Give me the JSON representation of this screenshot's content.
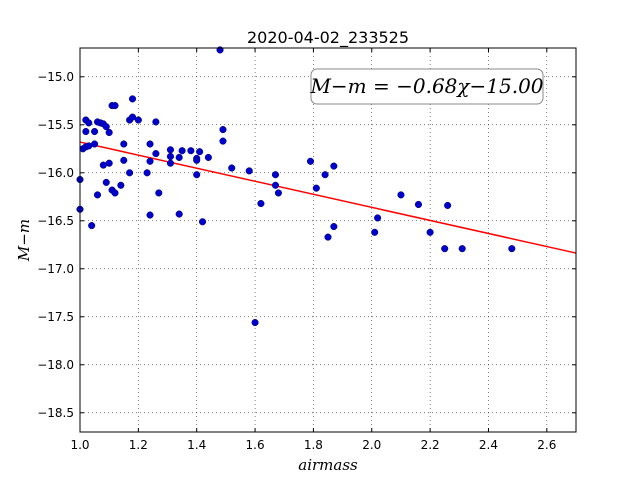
{
  "chart_data": {
    "type": "scatter",
    "title": "2020-04-02_233525",
    "xlabel": "airmass",
    "ylabel": "M−m",
    "xlim": [
      1.0,
      2.7
    ],
    "ylim": [
      -18.7,
      -14.7
    ],
    "xticks": [
      1.0,
      1.2,
      1.4,
      1.6,
      1.8,
      2.0,
      2.2,
      2.4,
      2.6
    ],
    "xtick_labels": [
      "1.0",
      "1.2",
      "1.4",
      "1.6",
      "1.8",
      "2.0",
      "2.2",
      "2.4",
      "2.6"
    ],
    "yticks": [
      -15.0,
      -15.5,
      -16.0,
      -16.5,
      -17.0,
      -17.5,
      -18.0,
      -18.5
    ],
    "ytick_labels": [
      "−15.0",
      "−15.5",
      "−16.0",
      "−16.5",
      "−17.0",
      "−17.5",
      "−18.0",
      "−18.5"
    ],
    "grid": true,
    "annotation": "M−m = −0.68χ−15.00",
    "fit": {
      "slope": -0.68,
      "intercept": -15.0,
      "color": "#ff0000"
    },
    "marker_color": "#0000cc",
    "points": [
      [
        1.0,
        -16.07
      ],
      [
        1.0,
        -16.38
      ],
      [
        1.01,
        -15.75
      ],
      [
        1.02,
        -15.45
      ],
      [
        1.02,
        -15.57
      ],
      [
        1.02,
        -15.73
      ],
      [
        1.03,
        -15.48
      ],
      [
        1.03,
        -15.72
      ],
      [
        1.04,
        -16.55
      ],
      [
        1.05,
        -15.57
      ],
      [
        1.05,
        -15.7
      ],
      [
        1.06,
        -16.23
      ],
      [
        1.06,
        -15.47
      ],
      [
        1.07,
        -15.48
      ],
      [
        1.08,
        -15.49
      ],
      [
        1.08,
        -15.92
      ],
      [
        1.09,
        -15.52
      ],
      [
        1.09,
        -16.1
      ],
      [
        1.1,
        -15.58
      ],
      [
        1.1,
        -15.9
      ],
      [
        1.11,
        -16.18
      ],
      [
        1.11,
        -15.3
      ],
      [
        1.12,
        -15.3
      ],
      [
        1.12,
        -16.21
      ],
      [
        1.14,
        -16.13
      ],
      [
        1.15,
        -15.7
      ],
      [
        1.15,
        -15.87
      ],
      [
        1.17,
        -15.45
      ],
      [
        1.17,
        -16.0
      ],
      [
        1.18,
        -15.23
      ],
      [
        1.18,
        -15.42
      ],
      [
        1.2,
        -15.45
      ],
      [
        1.23,
        -16.0
      ],
      [
        1.24,
        -15.7
      ],
      [
        1.24,
        -15.88
      ],
      [
        1.24,
        -16.44
      ],
      [
        1.26,
        -15.47
      ],
      [
        1.26,
        -15.8
      ],
      [
        1.27,
        -16.21
      ],
      [
        1.31,
        -15.76
      ],
      [
        1.31,
        -15.83
      ],
      [
        1.31,
        -15.9
      ],
      [
        1.34,
        -15.84
      ],
      [
        1.34,
        -16.43
      ],
      [
        1.35,
        -15.77
      ],
      [
        1.38,
        -15.77
      ],
      [
        1.4,
        -15.85
      ],
      [
        1.4,
        -15.87
      ],
      [
        1.4,
        -16.02
      ],
      [
        1.41,
        -15.78
      ],
      [
        1.42,
        -16.51
      ],
      [
        1.44,
        -15.84
      ],
      [
        1.48,
        -14.72
      ],
      [
        1.49,
        -15.55
      ],
      [
        1.49,
        -15.67
      ],
      [
        1.52,
        -15.95
      ],
      [
        1.58,
        -15.98
      ],
      [
        1.6,
        -17.56
      ],
      [
        1.62,
        -16.32
      ],
      [
        1.67,
        -16.02
      ],
      [
        1.67,
        -16.13
      ],
      [
        1.68,
        -16.21
      ],
      [
        1.79,
        -15.88
      ],
      [
        1.81,
        -16.16
      ],
      [
        1.84,
        -16.02
      ],
      [
        1.85,
        -16.67
      ],
      [
        1.87,
        -15.93
      ],
      [
        1.87,
        -16.56
      ],
      [
        2.01,
        -16.62
      ],
      [
        2.02,
        -16.47
      ],
      [
        2.1,
        -16.23
      ],
      [
        2.16,
        -16.33
      ],
      [
        2.2,
        -16.62
      ],
      [
        2.25,
        -16.79
      ],
      [
        2.26,
        -16.34
      ],
      [
        2.31,
        -16.79
      ],
      [
        2.48,
        -16.79
      ]
    ]
  }
}
